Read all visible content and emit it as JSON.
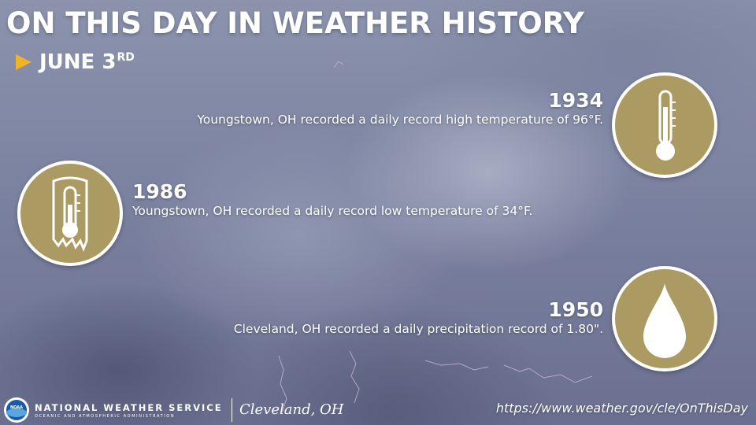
{
  "header": {
    "title": "ON THIS DAY IN WEATHER HISTORY",
    "date_main": "JUNE 3",
    "date_suffix": "RD",
    "arrow_color": "#f0b429"
  },
  "events": [
    {
      "year": "1934",
      "description": "Youngstown, OH recorded a daily record high temperature of 96°F.",
      "icon": "thermometer-icon"
    },
    {
      "year": "1986",
      "description": "Youngstown, OH recorded a daily record low temperature of 34°F.",
      "icon": "frozen-thermometer-icon"
    },
    {
      "year": "1950",
      "description": "Cleveland, OH recorded a daily precipitation record of 1.80\".",
      "icon": "raindrop-icon"
    }
  ],
  "badge_color": "#ab9a62",
  "footer": {
    "logo_text": "NOAA",
    "org_name": "NATIONAL WEATHER SERVICE",
    "org_sub": "OCEANIC AND ATMOSPHERIC ADMINISTRATION",
    "office": "Cleveland, OH",
    "url": "https://www.weather.gov/cle/OnThisDay"
  }
}
